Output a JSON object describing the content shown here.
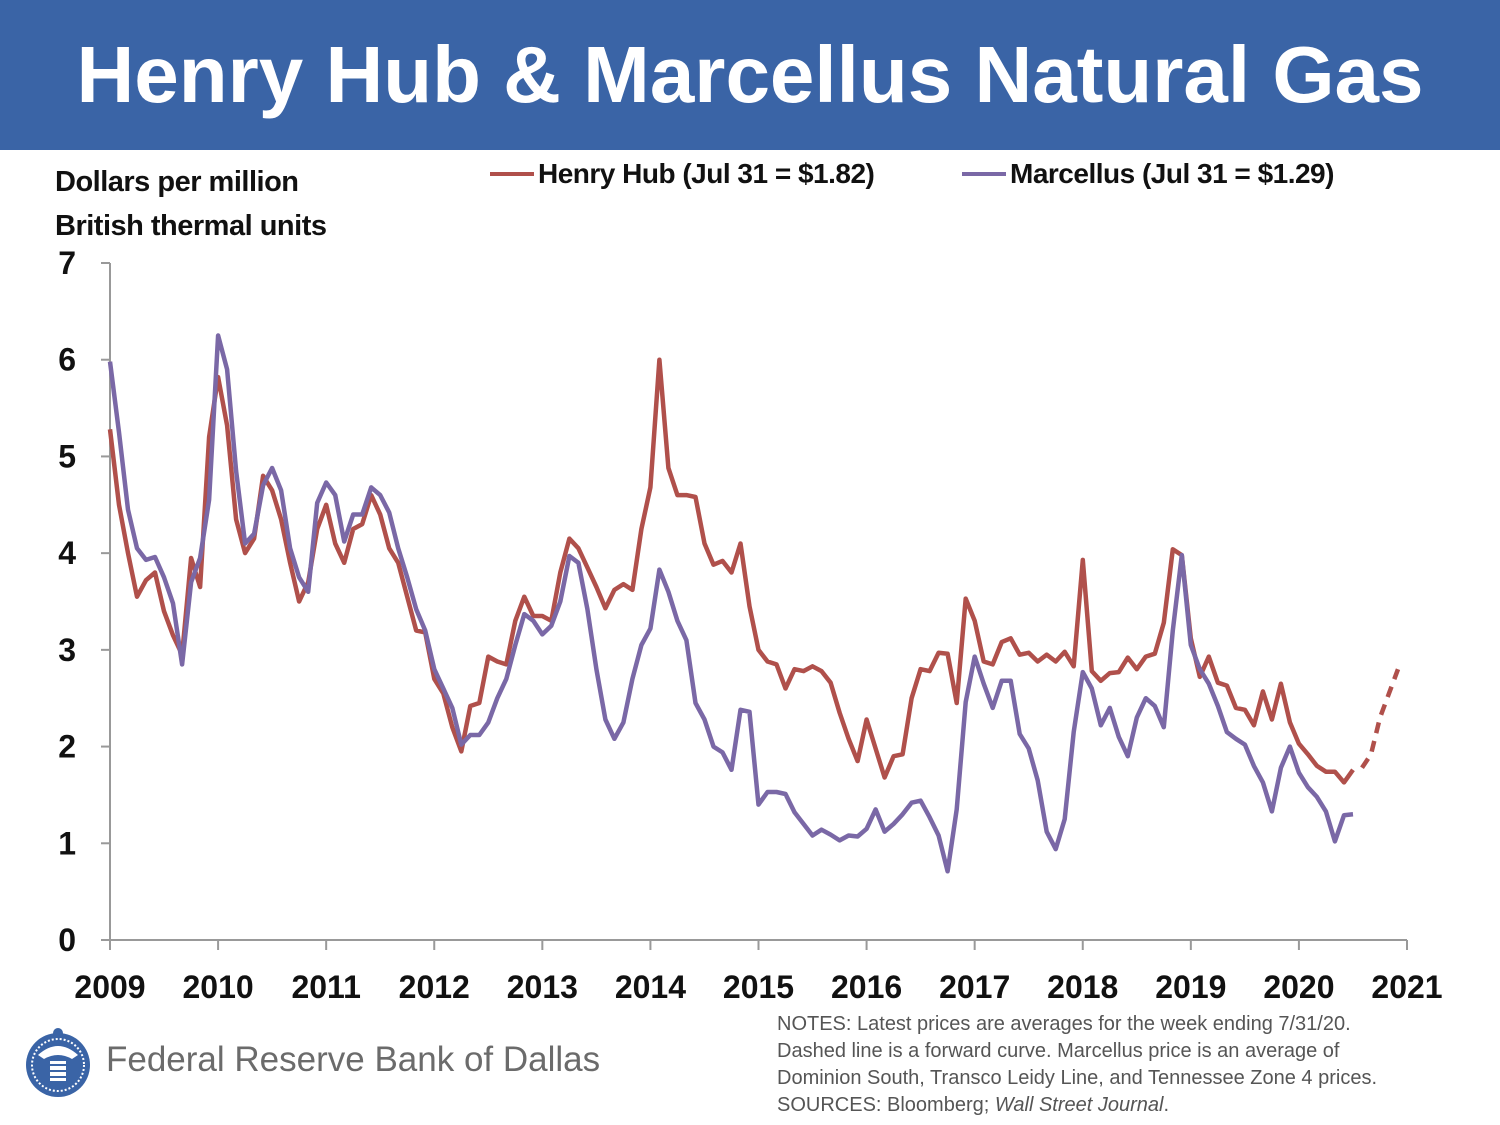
{
  "header": {
    "title": "Henry Hub & Marcellus Natural Gas"
  },
  "footer": {
    "bank": "Federal Reserve Bank of Dallas",
    "notes": [
      "NOTES: Latest prices are averages for the week ending 7/31/20.",
      "Dashed line is a forward curve. Marcellus price is an average of",
      "Dominion South, Transco Leidy Line, and Tennessee Zone 4 prices."
    ],
    "sources_prefix": "SOURCES: Bloomberg; ",
    "sources_italic": "Wall Street Journal",
    "sources_suffix": "."
  },
  "colors": {
    "header": "#3a64a6",
    "henry": "#b0504b",
    "marcellus": "#7a68a6"
  },
  "chart_data": {
    "type": "line",
    "title": "Henry Hub & Marcellus Natural Gas",
    "ylabel_lines": [
      "Dollars per million",
      "British thermal units"
    ],
    "xlabel": "",
    "ylim": [
      0,
      7
    ],
    "xlim": [
      2009,
      2021
    ],
    "yticks": [
      "0",
      "1",
      "2",
      "3",
      "4",
      "5",
      "6",
      "7"
    ],
    "xticks": [
      "2009",
      "2010",
      "2011",
      "2012",
      "2013",
      "2014",
      "2015",
      "2016",
      "2017",
      "2018",
      "2019",
      "2020",
      "2021"
    ],
    "frequency": "monthly, Jan 2009 - Jul 2020",
    "grid": false,
    "legend_position": "top",
    "series": [
      {
        "name": "Henry Hub (Jul 31 = $1.82)",
        "color": "#b0504b",
        "style": "solid",
        "values": [
          5.28,
          4.5,
          4.0,
          3.55,
          3.72,
          3.8,
          3.4,
          3.15,
          2.95,
          3.95,
          3.65,
          5.2,
          5.82,
          5.32,
          4.35,
          4.0,
          4.15,
          4.8,
          4.65,
          4.35,
          3.9,
          3.5,
          3.7,
          4.25,
          4.5,
          4.1,
          3.9,
          4.25,
          4.3,
          4.6,
          4.4,
          4.05,
          3.9,
          3.55,
          3.2,
          3.18,
          2.7,
          2.55,
          2.2,
          1.95,
          2.42,
          2.45,
          2.93,
          2.88,
          2.85,
          3.3,
          3.55,
          3.35,
          3.35,
          3.3,
          3.8,
          4.15,
          4.05,
          3.85,
          3.65,
          3.43,
          3.62,
          3.68,
          3.62,
          4.25,
          4.68,
          6.0,
          4.88,
          4.6,
          4.6,
          4.58,
          4.1,
          3.88,
          3.92,
          3.8,
          4.1,
          3.45,
          3.0,
          2.88,
          2.85,
          2.6,
          2.8,
          2.78,
          2.83,
          2.78,
          2.66,
          2.35,
          2.08,
          1.85,
          2.28,
          1.98,
          1.68,
          1.9,
          1.92,
          2.5,
          2.8,
          2.78,
          2.97,
          2.96,
          2.45,
          3.53,
          3.3,
          2.88,
          2.85,
          3.08,
          3.12,
          2.95,
          2.97,
          2.88,
          2.95,
          2.88,
          2.98,
          2.83,
          3.93,
          2.78,
          2.68,
          2.76,
          2.77,
          2.92,
          2.8,
          2.93,
          2.96,
          3.28,
          4.04,
          3.98,
          3.12,
          2.72,
          2.93,
          2.66,
          2.63,
          2.4,
          2.38,
          2.22,
          2.57,
          2.28,
          2.65,
          2.25,
          2.03,
          1.92,
          1.8,
          1.74,
          1.74,
          1.63,
          1.76
        ]
      },
      {
        "name": "Henry Hub forward curve",
        "color": "#b0504b",
        "style": "dashed",
        "start": "2020-08",
        "values": [
          1.78,
          1.92,
          2.3,
          2.55,
          2.8
        ]
      },
      {
        "name": "Marcellus (Jul 31 = $1.29)",
        "color": "#7a68a6",
        "style": "solid",
        "values": [
          5.98,
          5.25,
          4.45,
          4.05,
          3.93,
          3.96,
          3.75,
          3.48,
          2.85,
          3.7,
          3.95,
          4.55,
          6.25,
          5.9,
          4.85,
          4.1,
          4.2,
          4.7,
          4.88,
          4.65,
          4.05,
          3.75,
          3.6,
          4.52,
          4.73,
          4.6,
          4.12,
          4.4,
          4.4,
          4.68,
          4.6,
          4.42,
          4.05,
          3.75,
          3.42,
          3.2,
          2.8,
          2.6,
          2.4,
          2.02,
          2.12,
          2.12,
          2.25,
          2.5,
          2.7,
          3.05,
          3.37,
          3.3,
          3.16,
          3.25,
          3.5,
          3.97,
          3.9,
          3.42,
          2.8,
          2.28,
          2.08,
          2.25,
          2.7,
          3.05,
          3.22,
          3.83,
          3.6,
          3.3,
          3.1,
          2.45,
          2.28,
          2.0,
          1.94,
          1.76,
          2.38,
          2.36,
          1.4,
          1.53,
          1.53,
          1.51,
          1.32,
          1.2,
          1.08,
          1.14,
          1.09,
          1.03,
          1.08,
          1.07,
          1.15,
          1.35,
          1.12,
          1.2,
          1.3,
          1.42,
          1.44,
          1.27,
          1.08,
          0.71,
          1.35,
          2.46,
          2.93,
          2.65,
          2.4,
          2.68,
          2.68,
          2.13,
          1.98,
          1.65,
          1.12,
          0.94,
          1.25,
          2.15,
          2.77,
          2.6,
          2.22,
          2.4,
          2.1,
          1.9,
          2.3,
          2.5,
          2.42,
          2.2,
          3.2,
          3.98,
          3.05,
          2.8,
          2.65,
          2.42,
          2.15,
          2.08,
          2.02,
          1.8,
          1.63,
          1.33,
          1.78,
          2.0,
          1.73,
          1.58,
          1.48,
          1.33,
          1.02,
          1.29,
          1.3
        ]
      }
    ]
  }
}
